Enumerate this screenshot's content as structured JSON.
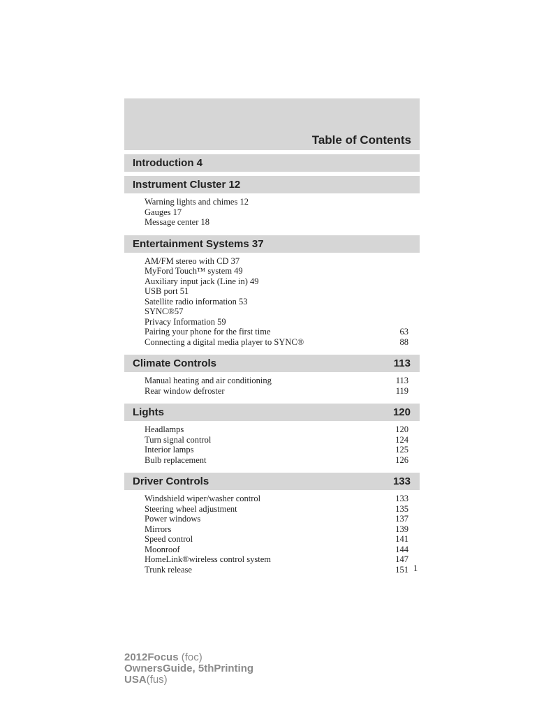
{
  "title": "Table of Contents",
  "sections": [
    {
      "label": "Introduction 4",
      "page": "",
      "items": []
    },
    {
      "label": "Instrument Cluster 12",
      "page": "",
      "items": [
        {
          "label": "Warning lights and chimes 12",
          "page": ""
        },
        {
          "label": "Gauges 17",
          "page": ""
        },
        {
          "label": "Message center 18",
          "page": ""
        }
      ]
    },
    {
      "label": "Entertainment Systems 37",
      "page": "",
      "items": [
        {
          "label": "AM/FM stereo with CD 37",
          "page": ""
        },
        {
          "label": "MyFord Touch™ system 49",
          "page": ""
        },
        {
          "label": "Auxiliary input jack (Line in) 49",
          "page": ""
        },
        {
          "label": "USB port 51",
          "page": ""
        },
        {
          "label": "Satellite radio information 53",
          "page": ""
        },
        {
          "label": "SYNC®57",
          "page": ""
        },
        {
          "label": "Privacy Information 59",
          "page": ""
        },
        {
          "label": "Pairing your phone for the first time",
          "page": "63"
        },
        {
          "label": "Connecting a digital media player to SYNC®",
          "page": "88"
        }
      ]
    },
    {
      "label": "Climate Controls",
      "page": "113",
      "items": [
        {
          "label": "Manual heating and air conditioning",
          "page": "113"
        },
        {
          "label": "Rear window defroster",
          "page": "119"
        }
      ]
    },
    {
      "label": "Lights",
      "page": "120",
      "items": [
        {
          "label": "Headlamps",
          "page": "120"
        },
        {
          "label": "Turn signal control",
          "page": "124"
        },
        {
          "label": "Interior lamps",
          "page": "125"
        },
        {
          "label": "Bulb replacement",
          "page": "126"
        }
      ]
    },
    {
      "label": "Driver Controls",
      "page": "133",
      "items": [
        {
          "label": "Windshield wiper/washer control",
          "page": "133"
        },
        {
          "label": "Steering wheel adjustment",
          "page": "135"
        },
        {
          "label": "Power windows",
          "page": "137"
        },
        {
          "label": "Mirrors",
          "page": "139"
        },
        {
          "label": "Speed control",
          "page": "141"
        },
        {
          "label": "Moonroof",
          "page": "144"
        },
        {
          "label": "HomeLink®wireless control system",
          "page": "147"
        },
        {
          "label": "Trunk release",
          "page": "151"
        }
      ]
    }
  ],
  "page_number": "1",
  "footer": {
    "line1_bold": "2012Focus",
    "line1_normal": " (foc)",
    "line2_bold": "OwnersGuide, 5thPrinting",
    "line3_bold": "USA",
    "line3_normal": "(fus)"
  }
}
